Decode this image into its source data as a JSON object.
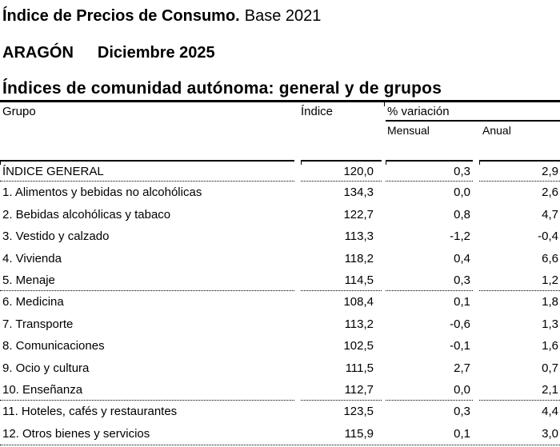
{
  "titles": {
    "main": "Índice de Precios de Consumo.",
    "base": "Base 2021",
    "region": "ARAGÓN",
    "period": "Diciembre 2025",
    "table_title": "Índices de comunidad autónoma: general y de grupos"
  },
  "table": {
    "headers": {
      "group": "Grupo",
      "index": "Índice",
      "variation": "% variación",
      "monthly": "Mensual",
      "annual": "Anual"
    },
    "rows": [
      {
        "label": "ÍNDICE GENERAL",
        "indice": "120,0",
        "mensual": "0,3",
        "anual": "2,9"
      },
      {
        "label": "1. Alimentos y bebidas no alcohólicas",
        "indice": "134,3",
        "mensual": "0,0",
        "anual": "2,6"
      },
      {
        "label": "2. Bebidas alcohólicas y tabaco",
        "indice": "122,7",
        "mensual": "0,8",
        "anual": "4,7"
      },
      {
        "label": "3. Vestido y calzado",
        "indice": "113,3",
        "mensual": "-1,2",
        "anual": "-0,4"
      },
      {
        "label": "4. Vivienda",
        "indice": "118,2",
        "mensual": "0,4",
        "anual": "6,6"
      },
      {
        "label": "5. Menaje",
        "indice": "114,5",
        "mensual": "0,3",
        "anual": "1,2"
      },
      {
        "label": "6. Medicina",
        "indice": "108,4",
        "mensual": "0,1",
        "anual": "1,8"
      },
      {
        "label": "7. Transporte",
        "indice": "113,2",
        "mensual": "-0,6",
        "anual": "1,3"
      },
      {
        "label": "8. Comunicaciones",
        "indice": "102,5",
        "mensual": "-0,1",
        "anual": "1,6"
      },
      {
        "label": "9. Ocio y cultura",
        "indice": "111,5",
        "mensual": "2,7",
        "anual": "0,7"
      },
      {
        "label": "10. Enseñanza",
        "indice": "112,7",
        "mensual": "0,0",
        "anual": "2,1"
      },
      {
        "label": "11. Hoteles, cafés y restaurantes",
        "indice": "123,5",
        "mensual": "0,3",
        "anual": "4,4"
      },
      {
        "label": "12. Otros bienes y servicios",
        "indice": "115,9",
        "mensual": "0,1",
        "anual": "3,0"
      }
    ]
  },
  "colors": {
    "text": "#000000",
    "background": "#ffffff",
    "rule": "#000000"
  }
}
